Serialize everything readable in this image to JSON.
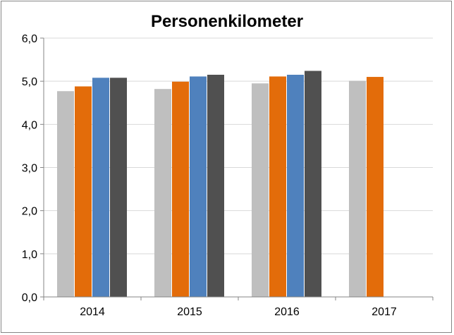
{
  "chart_data": {
    "type": "bar",
    "title": "Personenkilometer",
    "xlabel": "",
    "ylabel": "",
    "categories": [
      "2014",
      "2015",
      "2016",
      "2017"
    ],
    "ylim": [
      0,
      6
    ],
    "yticks": [
      "0,0",
      "1,0",
      "2,0",
      "3,0",
      "4,0",
      "5,0",
      "6,0"
    ],
    "grid": true,
    "legend": "none",
    "series": [
      {
        "color": "#BFBFBF",
        "values": [
          4.77,
          4.82,
          4.95,
          5.01
        ]
      },
      {
        "color": "#E36C0A",
        "values": [
          4.88,
          4.99,
          5.11,
          5.1
        ]
      },
      {
        "color": "#4F81BD",
        "values": [
          5.08,
          5.11,
          5.15,
          null
        ]
      },
      {
        "color": "#505050",
        "values": [
          5.08,
          5.15,
          5.24,
          null
        ]
      }
    ]
  }
}
